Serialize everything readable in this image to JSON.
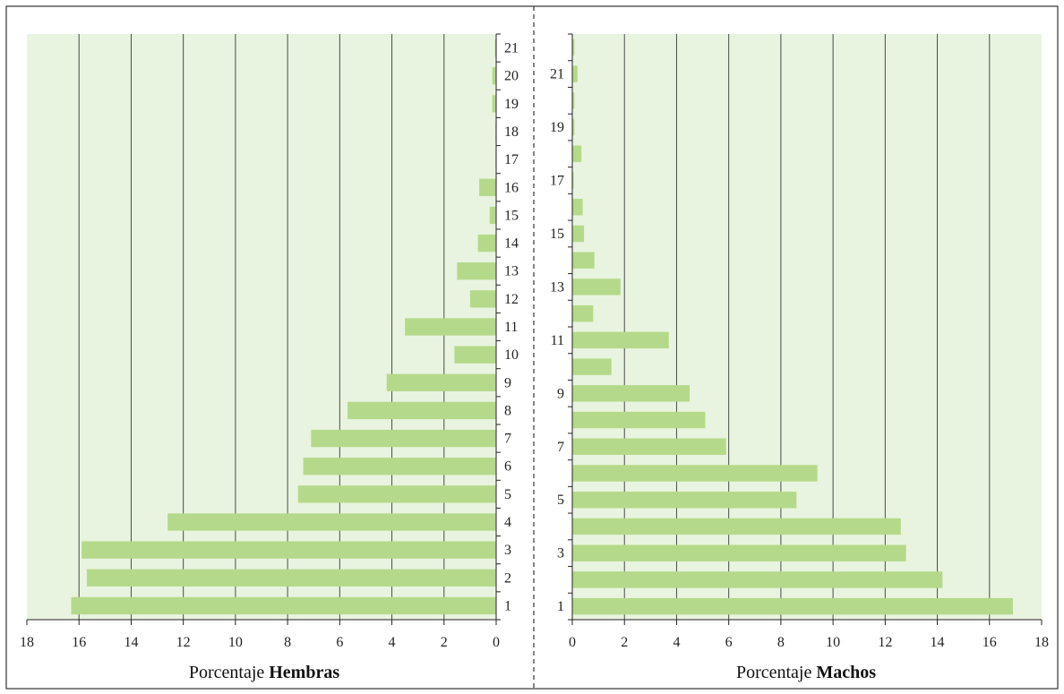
{
  "chart_data": [
    {
      "type": "bar",
      "orientation": "horizontal",
      "direction": "left",
      "xlabel_prefix": "Porcentaje ",
      "xlabel_bold": "Hembras",
      "xlim": [
        0,
        18
      ],
      "xticks": [
        "18",
        "16",
        "14",
        "12",
        "10",
        "8",
        "6",
        "4",
        "2",
        "0"
      ],
      "tick_values": [
        18,
        16,
        14,
        12,
        10,
        8,
        6,
        4,
        2,
        0
      ],
      "categories": [
        "1",
        "2",
        "3",
        "4",
        "5",
        "6",
        "7",
        "8",
        "9",
        "10",
        "11",
        "12",
        "13",
        "14",
        "15",
        "16",
        "17",
        "18",
        "19",
        "20",
        "21"
      ],
      "labeled_categories": [
        "1",
        "2",
        "3",
        "4",
        "5",
        "6",
        "7",
        "8",
        "9",
        "10",
        "11",
        "12",
        "13",
        "14",
        "15",
        "16",
        "17",
        "18",
        "19",
        "20",
        "21"
      ],
      "values": [
        16.3,
        15.7,
        15.9,
        12.6,
        7.6,
        7.4,
        7.1,
        5.7,
        4.2,
        1.6,
        3.5,
        1.0,
        1.5,
        0.7,
        0.25,
        0.65,
        0.03,
        0.03,
        0.15,
        0.15,
        0.05
      ],
      "grid": true,
      "bar_color": "#b5d98a",
      "background_color": "#e8f4df"
    },
    {
      "type": "bar",
      "orientation": "horizontal",
      "direction": "right",
      "xlabel_prefix": "Porcentaje ",
      "xlabel_bold": "Machos",
      "xlim": [
        0,
        18
      ],
      "xticks": [
        "0",
        "2",
        "4",
        "6",
        "8",
        "10",
        "12",
        "14",
        "16",
        "18"
      ],
      "tick_values": [
        0,
        2,
        4,
        6,
        8,
        10,
        12,
        14,
        16,
        18
      ],
      "categories": [
        "1",
        "2",
        "3",
        "4",
        "5",
        "6",
        "7",
        "8",
        "9",
        "10",
        "11",
        "12",
        "13",
        "14",
        "15",
        "16",
        "17",
        "18",
        "19",
        "20",
        "21",
        "22"
      ],
      "labeled_categories": [
        "1",
        "",
        "3",
        "",
        "5",
        "",
        "7",
        "",
        "9",
        "",
        "11",
        "",
        "13",
        "",
        "15",
        "",
        "17",
        "",
        "19",
        "",
        "21",
        ""
      ],
      "values": [
        16.9,
        14.2,
        12.8,
        12.6,
        8.6,
        9.4,
        5.9,
        5.1,
        4.5,
        1.5,
        3.7,
        0.8,
        1.85,
        0.85,
        0.45,
        0.4,
        0.05,
        0.35,
        0.08,
        0.08,
        0.2,
        0.08
      ],
      "grid": true,
      "bar_color": "#b5d98a",
      "background_color": "#e8f4df"
    }
  ]
}
